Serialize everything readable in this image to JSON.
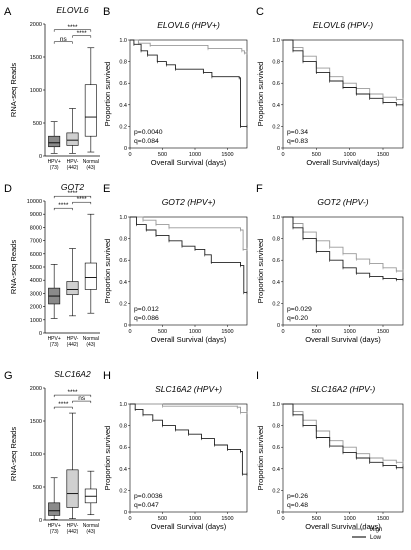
{
  "chart_data": [
    {
      "type": "box",
      "panel": "A",
      "title": "ELOVL6",
      "ylabel": "RNA-seq Reads",
      "ylim": [
        0,
        2000
      ],
      "yticks": [
        "0",
        "500",
        "1000",
        "1500",
        "2000"
      ],
      "categories": [
        {
          "name": "HPV+",
          "n": "(73)"
        },
        {
          "name": "HPV-",
          "n": "(442)"
        },
        {
          "name": "Normal",
          "n": "(43)"
        }
      ],
      "boxes": [
        {
          "min": 40,
          "q1": 140,
          "median": 200,
          "q3": 300,
          "max": 520,
          "fill": "#8a8a8a"
        },
        {
          "min": 40,
          "q1": 160,
          "median": 240,
          "q3": 350,
          "max": 720,
          "fill": "#d0d0d0"
        },
        {
          "min": 60,
          "q1": 300,
          "median": 590,
          "q3": 1080,
          "max": 1640,
          "fill": "#ffffff"
        }
      ],
      "comparisons": [
        {
          "a": 0,
          "b": 1,
          "label": "ns"
        },
        {
          "a": 1,
          "b": 2,
          "label": "****"
        },
        {
          "a": 0,
          "b": 2,
          "label": "****"
        }
      ]
    },
    {
      "type": "line",
      "panel": "B",
      "title": "ELOVL6 (HPV+)",
      "xlabel": "Overall Survival (days)",
      "ylabel": "Proportion survived",
      "xlim": [
        0,
        1800
      ],
      "xticks": [
        "0",
        "500",
        "1000",
        "1500"
      ],
      "ylim": [
        0,
        1
      ],
      "yticks": [
        "0",
        "0.2",
        "0.4",
        "0.6",
        "0.8",
        "1.0"
      ],
      "pvalue": "p=0.0040",
      "qvalue": "q=0.084",
      "series": [
        {
          "group": "high",
          "color": "#999999",
          "points": [
            [
              0,
              1
            ],
            [
              130,
              0.97
            ],
            [
              310,
              0.95
            ],
            [
              1200,
              0.92
            ],
            [
              1720,
              0.9
            ],
            [
              1760,
              0.88
            ],
            [
              1800,
              0.88
            ]
          ]
        },
        {
          "group": "low",
          "color": "#222222",
          "points": [
            [
              0,
              1
            ],
            [
              60,
              0.96
            ],
            [
              170,
              0.9
            ],
            [
              270,
              0.86
            ],
            [
              420,
              0.8
            ],
            [
              560,
              0.77
            ],
            [
              700,
              0.73
            ],
            [
              1130,
              0.7
            ],
            [
              1260,
              0.66
            ],
            [
              1680,
              0.65
            ],
            [
              1700,
              0.2
            ],
            [
              1800,
              0.2
            ]
          ]
        }
      ]
    },
    {
      "type": "line",
      "panel": "C",
      "title": "ELOVL6 (HPV-)",
      "xlabel": "Overall Survival(days)",
      "ylabel": "Proportion survived",
      "xlim": [
        0,
        1800
      ],
      "xticks": [
        "0",
        "500",
        "1000",
        "1500"
      ],
      "ylim": [
        0,
        1
      ],
      "yticks": [
        "0",
        "0.2",
        "0.4",
        "0.6",
        "0.8",
        "1.0"
      ],
      "pvalue": "p=0.34",
      "qvalue": "q=0.83",
      "series": [
        {
          "group": "high",
          "color": "#999999",
          "points": [
            [
              0,
              1
            ],
            [
              150,
              0.93
            ],
            [
              300,
              0.85
            ],
            [
              500,
              0.74
            ],
            [
              700,
              0.66
            ],
            [
              900,
              0.6
            ],
            [
              1100,
              0.55
            ],
            [
              1300,
              0.5
            ],
            [
              1500,
              0.47
            ],
            [
              1700,
              0.45
            ],
            [
              1800,
              0.45
            ]
          ]
        },
        {
          "group": "low",
          "color": "#222222",
          "points": [
            [
              0,
              1
            ],
            [
              150,
              0.9
            ],
            [
              300,
              0.8
            ],
            [
              500,
              0.7
            ],
            [
              700,
              0.62
            ],
            [
              900,
              0.56
            ],
            [
              1100,
              0.5
            ],
            [
              1300,
              0.46
            ],
            [
              1500,
              0.42
            ],
            [
              1700,
              0.4
            ],
            [
              1800,
              0.4
            ]
          ]
        }
      ]
    },
    {
      "type": "box",
      "panel": "D",
      "title": "GOT2",
      "ylabel": "RNA-seq Reads",
      "ylim": [
        0,
        10000
      ],
      "yticks": [
        "0",
        "1000",
        "2000",
        "3000",
        "4000",
        "5000",
        "6000",
        "7000",
        "8000",
        "9000",
        "10000"
      ],
      "categories": [
        {
          "name": "HPV+",
          "n": "(73)"
        },
        {
          "name": "HPV-",
          "n": "(442)"
        },
        {
          "name": "Normal",
          "n": "(43)"
        }
      ],
      "boxes": [
        {
          "min": 1100,
          "q1": 2200,
          "median": 2800,
          "q3": 3400,
          "max": 5200,
          "fill": "#8a8a8a"
        },
        {
          "min": 1300,
          "q1": 2900,
          "median": 3300,
          "q3": 3900,
          "max": 6400,
          "fill": "#d0d0d0"
        },
        {
          "min": 1500,
          "q1": 3300,
          "median": 4200,
          "q3": 5300,
          "max": 9000,
          "fill": "#ffffff"
        }
      ],
      "comparisons": [
        {
          "a": 0,
          "b": 1,
          "label": "****"
        },
        {
          "a": 1,
          "b": 2,
          "label": "****"
        },
        {
          "a": 0,
          "b": 2,
          "label": "****"
        }
      ]
    },
    {
      "type": "line",
      "panel": "E",
      "title": "GOT2 (HPV+)",
      "xlabel": "Overall Survival (days)",
      "ylabel": "Proportion survived",
      "xlim": [
        0,
        1800
      ],
      "xticks": [
        "0",
        "500",
        "1000",
        "1500"
      ],
      "ylim": [
        0,
        1
      ],
      "yticks": [
        "0",
        "0.2",
        "0.4",
        "0.6",
        "0.8",
        "1.0"
      ],
      "pvalue": "p=0.012",
      "qvalue": "q=0.086",
      "series": [
        {
          "group": "high",
          "color": "#999999",
          "points": [
            [
              0,
              1
            ],
            [
              200,
              0.97
            ],
            [
              400,
              0.93
            ],
            [
              600,
              0.9
            ],
            [
              1700,
              0.88
            ],
            [
              1740,
              0.7
            ],
            [
              1800,
              0.7
            ]
          ]
        },
        {
          "group": "low",
          "color": "#222222",
          "points": [
            [
              0,
              1
            ],
            [
              100,
              0.93
            ],
            [
              250,
              0.88
            ],
            [
              400,
              0.83
            ],
            [
              600,
              0.78
            ],
            [
              800,
              0.73
            ],
            [
              1000,
              0.7
            ],
            [
              1150,
              0.65
            ],
            [
              1250,
              0.58
            ],
            [
              1700,
              0.55
            ],
            [
              1750,
              0.3
            ],
            [
              1800,
              0.3
            ]
          ]
        }
      ]
    },
    {
      "type": "line",
      "panel": "F",
      "title": "GOT2 (HPV-)",
      "xlabel": "Overall Survival (days)",
      "ylabel": "Proportion survived",
      "xlim": [
        0,
        1800
      ],
      "xticks": [
        "0",
        "500",
        "1000",
        "1500"
      ],
      "ylim": [
        0,
        1
      ],
      "yticks": [
        "0",
        "0.2",
        "0.4",
        "0.6",
        "0.8",
        "1.0"
      ],
      "pvalue": "p=0.029",
      "qvalue": "q=0.20",
      "series": [
        {
          "group": "high",
          "color": "#999999",
          "points": [
            [
              0,
              1
            ],
            [
              150,
              0.94
            ],
            [
              300,
              0.86
            ],
            [
              500,
              0.78
            ],
            [
              700,
              0.72
            ],
            [
              900,
              0.66
            ],
            [
              1100,
              0.61
            ],
            [
              1300,
              0.57
            ],
            [
              1500,
              0.53
            ],
            [
              1700,
              0.5
            ],
            [
              1800,
              0.5
            ]
          ]
        },
        {
          "group": "low",
          "color": "#222222",
          "points": [
            [
              0,
              1
            ],
            [
              150,
              0.9
            ],
            [
              300,
              0.8
            ],
            [
              500,
              0.68
            ],
            [
              700,
              0.6
            ],
            [
              900,
              0.53
            ],
            [
              1100,
              0.48
            ],
            [
              1300,
              0.45
            ],
            [
              1500,
              0.43
            ],
            [
              1700,
              0.42
            ],
            [
              1800,
              0.42
            ]
          ]
        }
      ]
    },
    {
      "type": "box",
      "panel": "G",
      "title": "SLC16A2",
      "ylabel": "RNA-seq Reads",
      "ylim": [
        0,
        2000
      ],
      "yticks": [
        "0",
        "500",
        "1000",
        "1500",
        "2000"
      ],
      "categories": [
        {
          "name": "HPV+",
          "n": "(73)"
        },
        {
          "name": "HPV-",
          "n": "(442)"
        },
        {
          "name": "Normal",
          "n": "(43)"
        }
      ],
      "boxes": [
        {
          "min": 10,
          "q1": 70,
          "median": 140,
          "q3": 260,
          "max": 640,
          "fill": "#8a8a8a"
        },
        {
          "min": 20,
          "q1": 190,
          "median": 400,
          "q3": 760,
          "max": 1620,
          "fill": "#d0d0d0"
        },
        {
          "min": 80,
          "q1": 260,
          "median": 360,
          "q3": 470,
          "max": 740,
          "fill": "#ffffff"
        }
      ],
      "comparisons": [
        {
          "a": 0,
          "b": 1,
          "label": "****"
        },
        {
          "a": 1,
          "b": 2,
          "label": "ns"
        },
        {
          "a": 0,
          "b": 2,
          "label": "****"
        }
      ]
    },
    {
      "type": "line",
      "panel": "H",
      "title": "SLC16A2 (HPV+)",
      "xlabel": "Overall Survival (days)",
      "ylabel": "Proportion survived",
      "xlim": [
        0,
        1800
      ],
      "xticks": [
        "0",
        "500",
        "1000",
        "1500"
      ],
      "ylim": [
        0,
        1
      ],
      "yticks": [
        "0",
        "0.2",
        "0.4",
        "0.6",
        "0.8",
        "1.0"
      ],
      "pvalue": "p=0.0036",
      "qvalue": "q=0.047",
      "series": [
        {
          "group": "high",
          "color": "#999999",
          "points": [
            [
              0,
              1
            ],
            [
              500,
              0.98
            ],
            [
              1650,
              0.97
            ],
            [
              1700,
              0.92
            ],
            [
              1800,
              0.92
            ]
          ]
        },
        {
          "group": "low",
          "color": "#222222",
          "points": [
            [
              0,
              1
            ],
            [
              80,
              0.95
            ],
            [
              200,
              0.9
            ],
            [
              350,
              0.85
            ],
            [
              500,
              0.8
            ],
            [
              700,
              0.76
            ],
            [
              900,
              0.72
            ],
            [
              1100,
              0.68
            ],
            [
              1300,
              0.62
            ],
            [
              1500,
              0.58
            ],
            [
              1700,
              0.56
            ],
            [
              1730,
              0.35
            ],
            [
              1800,
              0.35
            ]
          ]
        }
      ]
    },
    {
      "type": "line",
      "panel": "I",
      "title": "SLC16A2 (HPV-)",
      "xlabel": "Overall Survival (days)",
      "ylabel": "Proportion survived",
      "xlim": [
        0,
        1800
      ],
      "xticks": [
        "0",
        "500",
        "1000",
        "1500"
      ],
      "ylim": [
        0,
        1
      ],
      "yticks": [
        "0",
        "0.2",
        "0.4",
        "0.6",
        "0.8",
        "1.0"
      ],
      "pvalue": "p=0.26",
      "qvalue": "q=0.48",
      "series": [
        {
          "group": "high",
          "color": "#999999",
          "points": [
            [
              0,
              1
            ],
            [
              150,
              0.93
            ],
            [
              300,
              0.85
            ],
            [
              500,
              0.75
            ],
            [
              700,
              0.66
            ],
            [
              900,
              0.6
            ],
            [
              1100,
              0.54
            ],
            [
              1300,
              0.5
            ],
            [
              1500,
              0.48
            ],
            [
              1700,
              0.46
            ],
            [
              1800,
              0.46
            ]
          ]
        },
        {
          "group": "low",
          "color": "#222222",
          "points": [
            [
              0,
              1
            ],
            [
              150,
              0.9
            ],
            [
              300,
              0.8
            ],
            [
              500,
              0.69
            ],
            [
              700,
              0.61
            ],
            [
              900,
              0.55
            ],
            [
              1100,
              0.5
            ],
            [
              1300,
              0.46
            ],
            [
              1500,
              0.43
            ],
            [
              1700,
              0.41
            ],
            [
              1800,
              0.41
            ]
          ]
        }
      ]
    }
  ],
  "legend": {
    "placement": "bottom-right",
    "items": [
      {
        "label": "High",
        "color": "#999999"
      },
      {
        "label": "Low",
        "color": "#222222"
      }
    ]
  }
}
